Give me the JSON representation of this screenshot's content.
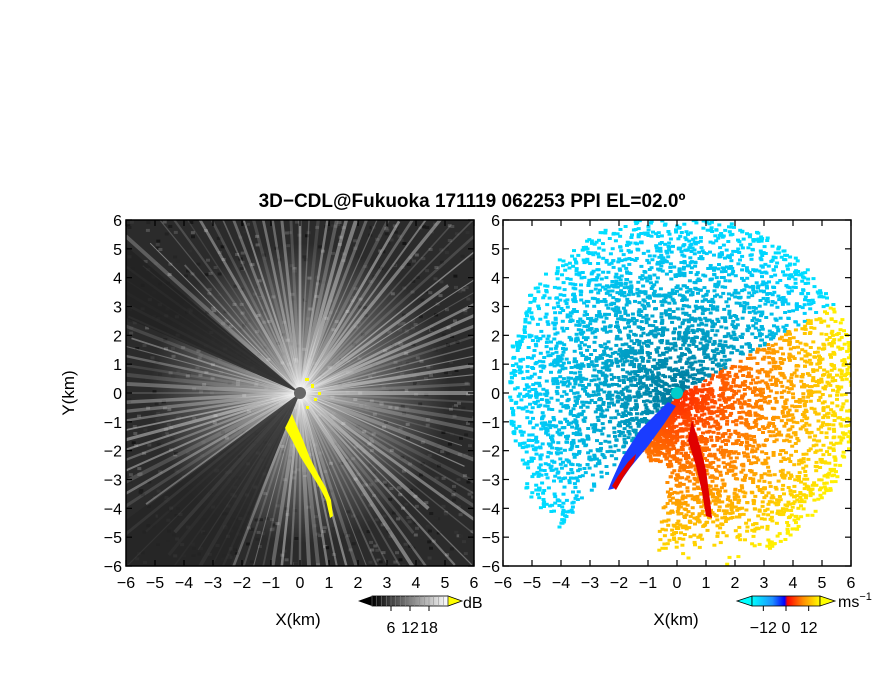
{
  "figure": {
    "title": "3D−CDL@Fukuoka 171119 062253 PPI EL=02.0º"
  },
  "chart_data": [
    {
      "type": "heatmap",
      "panel": "left",
      "xlabel": "X(km)",
      "ylabel": "Y(km)",
      "xlim": [
        -6,
        6
      ],
      "ylim": [
        -6,
        6
      ],
      "xticks": [
        "−6",
        "−5",
        "−4",
        "−3",
        "−2",
        "−1",
        "0",
        "1",
        "2",
        "3",
        "4",
        "5",
        "6"
      ],
      "yticks": [
        "−6",
        "−5",
        "−4",
        "−3",
        "−2",
        "−1",
        "0",
        "1",
        "2",
        "3",
        "4",
        "5",
        "6"
      ],
      "colorbar": {
        "unit": "dB",
        "ticks": [
          6,
          12,
          18
        ],
        "tick_labels": [
          "6",
          "12",
          "18"
        ],
        "range": [
          0,
          24
        ],
        "colors": [
          "#000000",
          "#ffffff"
        ],
        "overflow_color": "#ffff00"
      },
      "colors": {
        "background": "#2b2b2b",
        "ray": "#e0e0e0",
        "highlight": "#ffff00",
        "center": "#666666"
      }
    },
    {
      "type": "heatmap",
      "panel": "right",
      "xlabel": "X(km)",
      "ylabel": "",
      "xlim": [
        -6,
        6
      ],
      "ylim": [
        -6,
        6
      ],
      "xticks": [
        "−6",
        "−5",
        "−4",
        "−3",
        "−2",
        "−1",
        "0",
        "1",
        "2",
        "3",
        "4",
        "5",
        "6"
      ],
      "colorbar": {
        "unit": "ms",
        "unit_exponent": "−1",
        "ticks": [
          -12,
          0,
          12
        ],
        "tick_labels": [
          "−12",
          "0",
          "12"
        ],
        "range": [
          -18,
          18
        ],
        "colors": [
          "#00ffff",
          "#1e90ff",
          "#0000ff",
          "#ff0000",
          "#ff8c00",
          "#ffff00"
        ]
      },
      "colors": {
        "receding": "#ff5a00",
        "approaching": "#1e8fff",
        "center": "#00cccc"
      }
    }
  ]
}
